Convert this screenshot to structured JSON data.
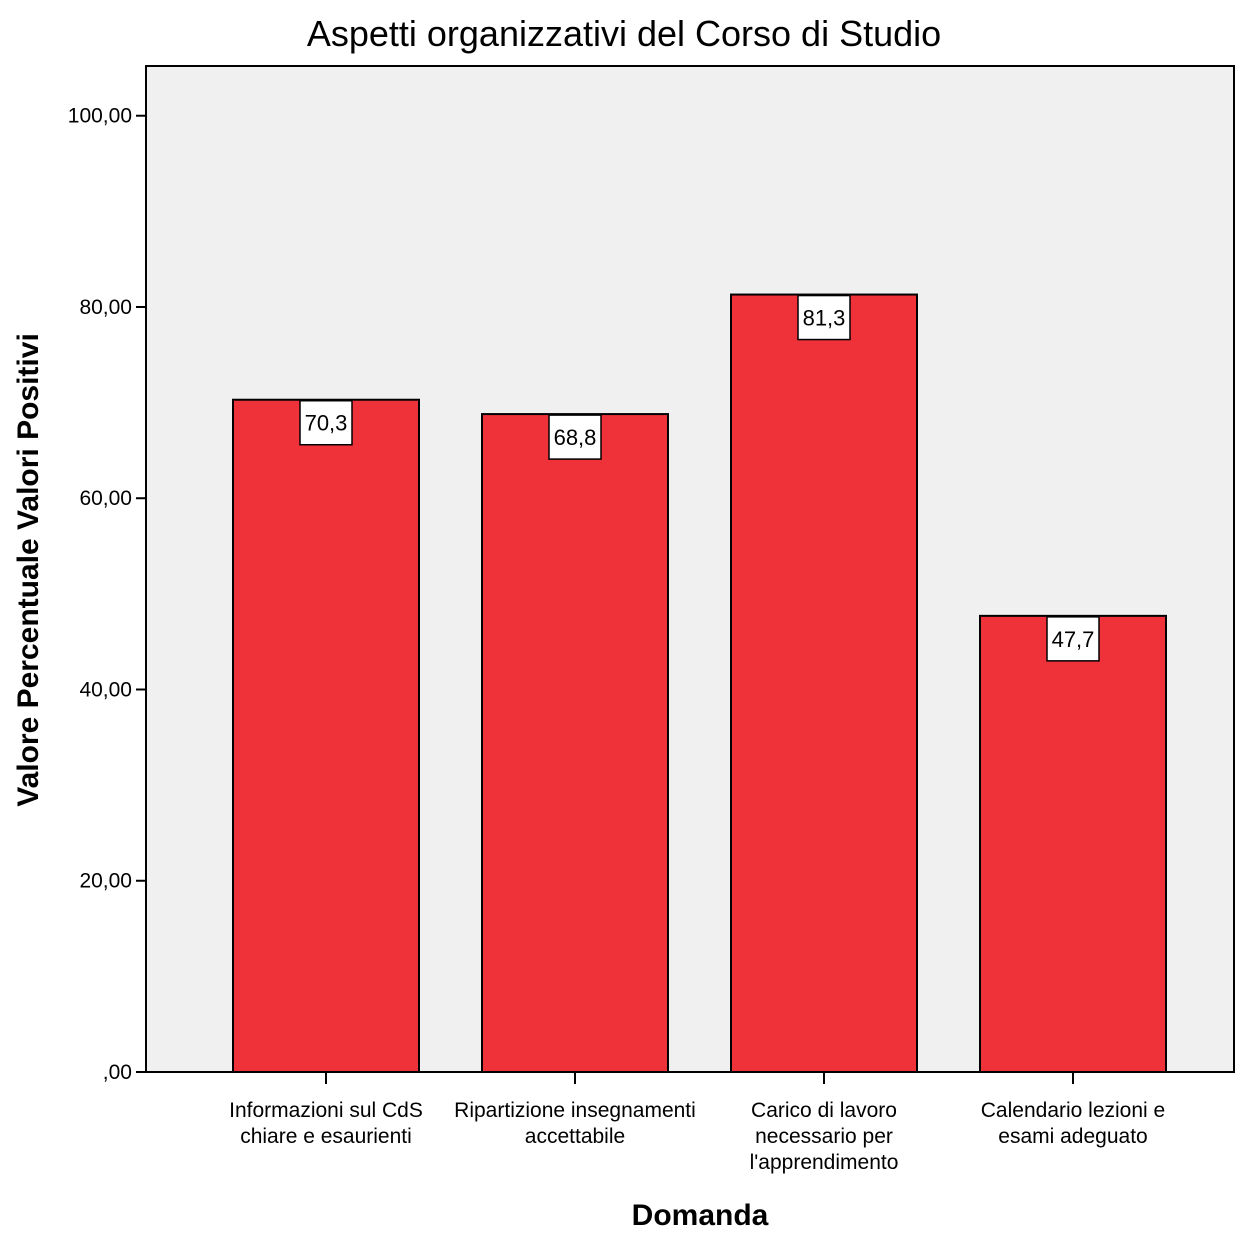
{
  "chart_data": {
    "type": "bar",
    "title": "Aspetti organizzativi del Corso di Studio",
    "xlabel": "Domanda",
    "ylabel": "Valore Percentuale Valori Positivi",
    "categories": [
      [
        "Informazioni sul CdS",
        "chiare e esaurienti"
      ],
      [
        "Ripartizione insegnamenti",
        "accettabile"
      ],
      [
        "Carico di lavoro",
        "necessario per",
        "l'apprendimento"
      ],
      [
        "Calendario lezioni e",
        "esami adeguato"
      ]
    ],
    "values": [
      70.3,
      68.8,
      81.3,
      47.7
    ],
    "value_labels": [
      "70,3",
      "68,8",
      "81,3",
      "47,7"
    ],
    "yticks": [
      0,
      20,
      40,
      60,
      80,
      100
    ],
    "ytick_labels": [
      ",00",
      "20,00",
      "40,00",
      "60,00",
      "80,00",
      "100,00"
    ],
    "ylim": [
      0,
      105.2
    ],
    "grid": false,
    "legend": "none",
    "colors": {
      "bar": "#ef323a",
      "plot_background": "#f0f0f0",
      "bar_outline": "#000000"
    }
  }
}
